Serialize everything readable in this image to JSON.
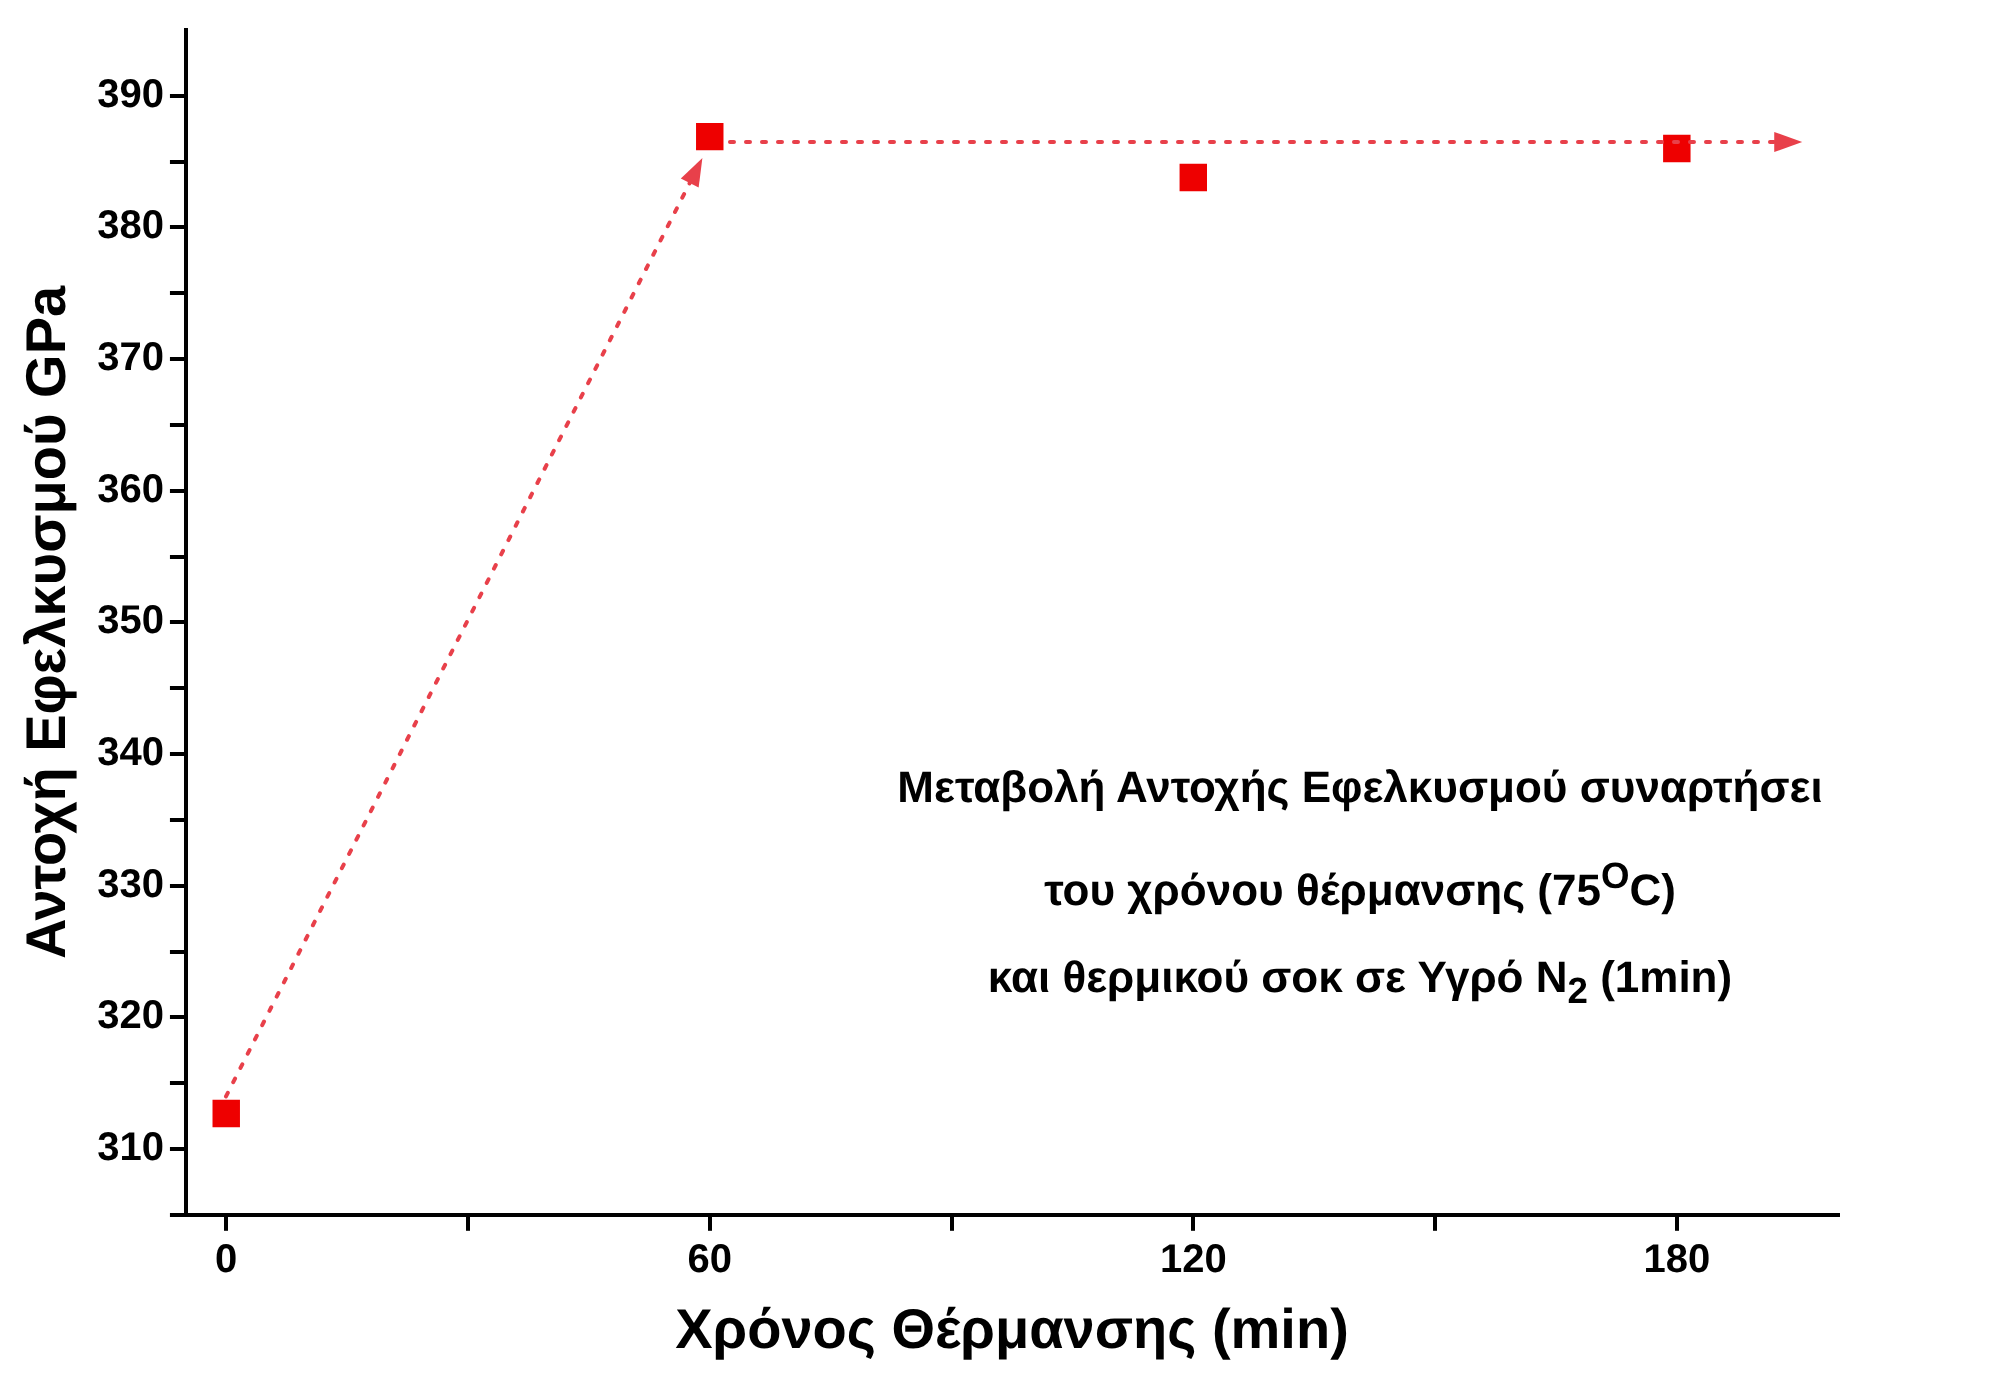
{
  "chart_data": {
    "type": "scatter",
    "xlabel": "Χρόνος Θέρμανσης (min)",
    "ylabel": "Αντοχή Εφελκυσμού GPa",
    "annotations": [
      "Μεταβολή Αντοχής Εφελκυσμού συναρτήσει",
      "του χρόνου  θέρμανσης (75$^{O}$C)",
      "και θερμικού σοκ σε Υγρό N$_{2}$ (1min)"
    ],
    "x": [
      0,
      60,
      120,
      180
    ],
    "series": [
      {
        "type": "scatter",
        "color": "#ee0000",
        "values": [
          312.7,
          386.9,
          383.8,
          386.0
        ],
        "marker": "square"
      }
    ],
    "legend": false,
    "grid": false,
    "xlim": [
      -5,
      200
    ],
    "xticks": [
      0,
      {
        "value": 30,
        "label": null
      },
      60,
      {
        "value": 90,
        "label": null
      },
      120,
      {
        "value": 150,
        "label": null
      },
      180
    ],
    "ylim": [
      305,
      395
    ],
    "yticks": [
      {
        "value": 305,
        "label": null
      },
      310,
      {
        "value": 315,
        "label": null
      },
      320,
      {
        "value": 325,
        "label": null
      },
      330,
      {
        "value": 335,
        "label": null
      },
      340,
      {
        "value": 345,
        "label": null
      },
      350,
      {
        "value": 355,
        "label": null
      },
      360,
      {
        "value": 365,
        "label": null
      },
      370,
      {
        "value": 375,
        "label": null
      },
      380,
      {
        "value": 385,
        "label": null
      },
      390
    ]
  }
}
